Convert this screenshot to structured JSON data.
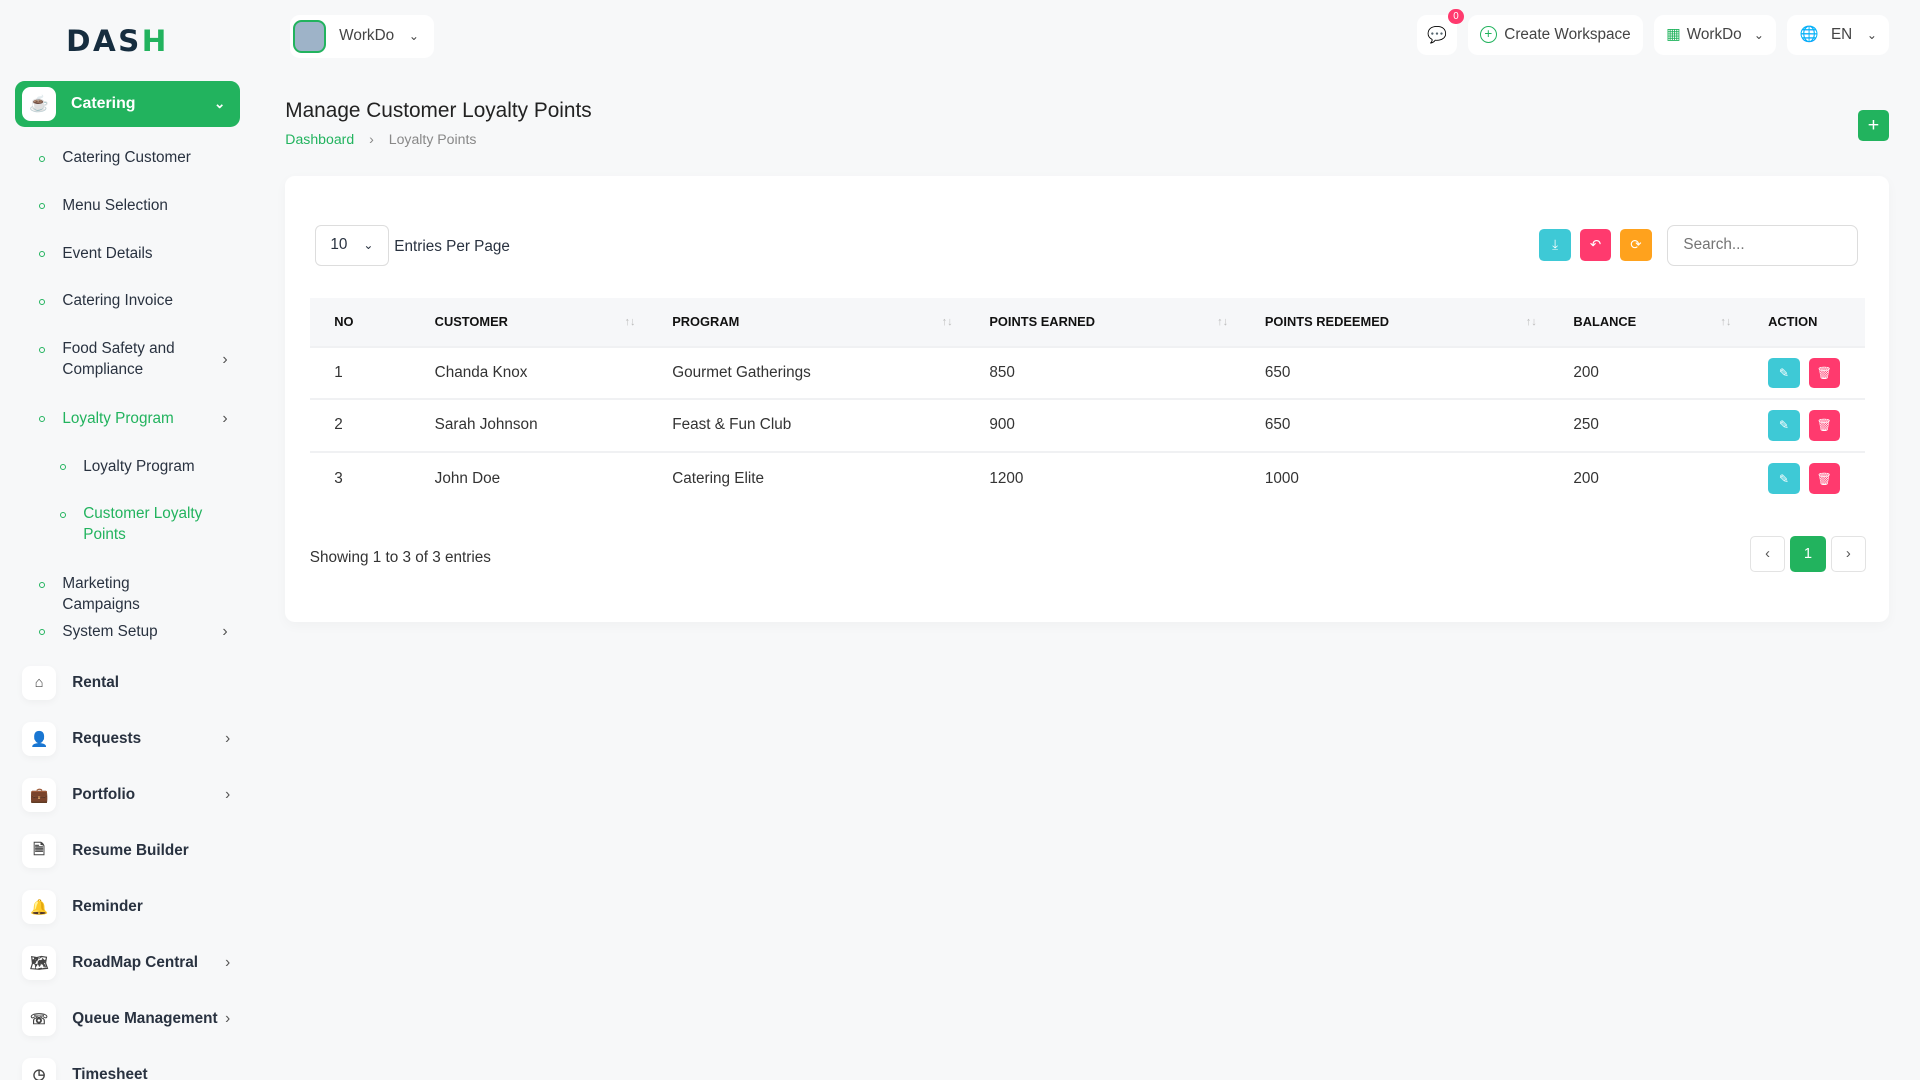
{
  "brand": {
    "logo": "DASH",
    "accent": "#22b35e"
  },
  "header": {
    "workspace": "WorkDo",
    "notification_count": "0",
    "create_workspace": "Create Workspace",
    "workdo_menu": "WorkDo",
    "language": "EN"
  },
  "sidebar": {
    "active_module": "Catering",
    "sub_items": [
      {
        "label": "Catering Customer"
      },
      {
        "label": "Menu Selection"
      },
      {
        "label": "Event Details"
      },
      {
        "label": "Catering Invoice"
      },
      {
        "label": "Food Safety and Compliance",
        "has_children": true
      },
      {
        "label": "Loyalty Program",
        "has_children": true,
        "active": true
      },
      {
        "label": "Loyalty Program"
      },
      {
        "label": "Customer Loyalty Points",
        "active": true
      },
      {
        "label": "Marketing Campaigns"
      },
      {
        "label": "System Setup",
        "has_children": true
      }
    ],
    "modules": [
      {
        "label": "Rental",
        "icon": "home-icon"
      },
      {
        "label": "Requests",
        "icon": "user-plus-icon",
        "has_children": true
      },
      {
        "label": "Portfolio",
        "icon": "briefcase-icon",
        "has_children": true
      },
      {
        "label": "Resume Builder",
        "icon": "file-icon"
      },
      {
        "label": "Reminder",
        "icon": "bell-icon"
      },
      {
        "label": "RoadMap Central",
        "icon": "map-icon",
        "has_children": true
      },
      {
        "label": "Queue Management",
        "icon": "phone-icon",
        "has_children": true
      },
      {
        "label": "Timesheet",
        "icon": "clock-icon"
      }
    ]
  },
  "page": {
    "title": "Manage Customer Loyalty Points",
    "breadcrumb": [
      "Dashboard",
      "Loyalty Points"
    ]
  },
  "table_controls": {
    "per_page": "10",
    "per_page_label": "Entries Per Page",
    "search_placeholder": "Search..."
  },
  "table": {
    "columns": [
      "NO",
      "CUSTOMER",
      "PROGRAM",
      "POINTS EARNED",
      "POINTS REDEEMED",
      "BALANCE",
      "ACTION"
    ],
    "rows": [
      {
        "no": "1",
        "customer": "Chanda Knox",
        "program": "Gourmet Gatherings",
        "earned": "850",
        "redeemed": "650",
        "balance": "200"
      },
      {
        "no": "2",
        "customer": "Sarah Johnson",
        "program": "Feast & Fun Club",
        "earned": "900",
        "redeemed": "650",
        "balance": "250"
      },
      {
        "no": "3",
        "customer": "John Doe",
        "program": "Catering Elite",
        "earned": "1200",
        "redeemed": "1000",
        "balance": "200"
      }
    ]
  },
  "footer": {
    "showing": "Showing 1 to 3 of 3 entries",
    "current_page": "1"
  }
}
